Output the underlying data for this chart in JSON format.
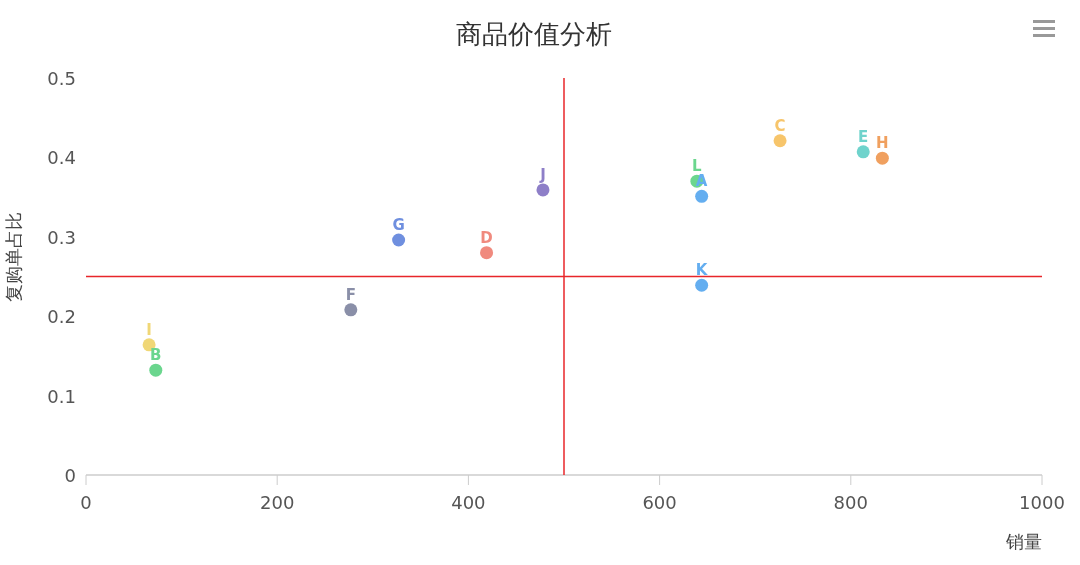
{
  "chart_data": {
    "type": "scatter",
    "title": "商品价值分析",
    "xlabel": "销量",
    "ylabel": "复购单占比",
    "xlim": [
      0,
      1000
    ],
    "xticks": [
      0,
      200,
      400,
      600,
      800,
      1000
    ],
    "ylim": [
      0,
      0.5
    ],
    "yticks": [
      0,
      0.1,
      0.2,
      0.3,
      0.4,
      0.5
    ],
    "grid": false,
    "marker": "circle",
    "ref_lines": [
      {
        "axis": "y",
        "value": 0.25,
        "color": "#e8262a"
      },
      {
        "axis": "x",
        "value": 500,
        "color": "#e8262a"
      }
    ],
    "series": [
      {
        "name": "I",
        "color": "#f0d776",
        "x": [
          66
        ],
        "values": [
          0.164
        ]
      },
      {
        "name": "B",
        "color": "#6bd68e",
        "x": [
          73
        ],
        "values": [
          0.132
        ]
      },
      {
        "name": "F",
        "color": "#8a8fa8",
        "x": [
          277
        ],
        "values": [
          0.208
        ]
      },
      {
        "name": "G",
        "color": "#6f8fdf",
        "x": [
          327
        ],
        "values": [
          0.296
        ]
      },
      {
        "name": "D",
        "color": "#f08a7e",
        "x": [
          419
        ],
        "values": [
          0.28
        ]
      },
      {
        "name": "J",
        "color": "#8e7fc8",
        "x": [
          478
        ],
        "values": [
          0.359
        ]
      },
      {
        "name": "L",
        "color": "#6bd68e",
        "x": [
          639
        ],
        "values": [
          0.37
        ]
      },
      {
        "name": "A",
        "color": "#64aef0",
        "x": [
          644
        ],
        "values": [
          0.351
        ]
      },
      {
        "name": "K",
        "color": "#64aef0",
        "x": [
          644
        ],
        "values": [
          0.239
        ]
      },
      {
        "name": "C",
        "color": "#f7c56b",
        "x": [
          726
        ],
        "values": [
          0.421
        ]
      },
      {
        "name": "E",
        "color": "#6fd3cc",
        "x": [
          813
        ],
        "values": [
          0.407
        ]
      },
      {
        "name": "H",
        "color": "#f0a05f",
        "x": [
          833
        ],
        "values": [
          0.399
        ]
      }
    ]
  }
}
